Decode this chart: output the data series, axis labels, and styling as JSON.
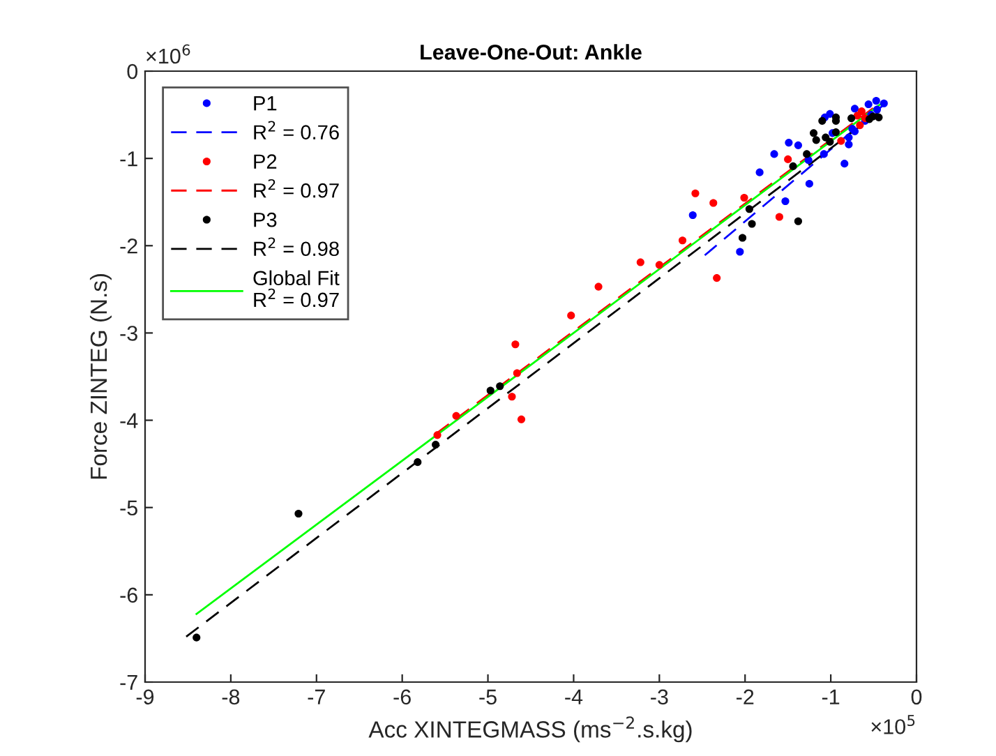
{
  "chart_data": {
    "type": "scatter",
    "title": "Leave-One-Out: Ankle",
    "xlabel": "Acc XINTEGMASS (ms$^{−2}$.s.kg)",
    "ylabel": "Force ZINTEG (N.s)",
    "annotations": [
      "×10$^{6}$",
      "×10$^{5}$"
    ],
    "xlim": [
      -9,
      0
    ],
    "xticks": [
      -9,
      -8,
      -7,
      -6,
      -5,
      -4,
      -3,
      -2,
      -1,
      0
    ],
    "ylim": [
      -7,
      0
    ],
    "yticks": [
      -7,
      -6,
      -5,
      -4,
      -3,
      -2,
      -1,
      0
    ],
    "grid": false,
    "legend": "top left",
    "series": [
      {
        "name": "P1",
        "marker": "circle",
        "color": "#0000ff",
        "x": [
          -0.47,
          -0.56,
          -0.72,
          -0.46,
          -0.53,
          -1.07,
          -1.01,
          -0.75,
          -0.72,
          -0.79,
          -0.79,
          -0.98,
          -1.49,
          -1.38,
          -1.66,
          -1.26,
          -1.08,
          -0.84,
          -1.83,
          -1.25,
          -1.53,
          -2.61,
          -2.06,
          -0.38,
          -0.6
        ],
        "values": [
          -0.34,
          -0.38,
          -0.43,
          -0.44,
          -0.5,
          -0.53,
          -0.49,
          -0.66,
          -0.69,
          -0.76,
          -0.84,
          -0.71,
          -0.82,
          -0.85,
          -0.95,
          -1.02,
          -0.95,
          -1.06,
          -1.16,
          -1.29,
          -1.49,
          -1.65,
          -2.07,
          -0.37,
          -0.57
        ]
      },
      {
        "name": "R$^{2}$ = 0.76",
        "type": "line",
        "line_style": "dashed",
        "color": "#0000ff",
        "x": [
          -2.47,
          -0.4
        ],
        "values": [
          -2.11,
          -0.4
        ]
      },
      {
        "name": "P2",
        "marker": "circle",
        "color": "#ff0000",
        "x": [
          -2.58,
          -2.37,
          -2.01,
          -2.73,
          -2.33,
          -1.6,
          -1.5,
          -0.88,
          -0.69,
          -0.64,
          -0.6,
          -0.66,
          -3.22,
          -3.0,
          -3.71,
          -4.03,
          -4.68,
          -4.66,
          -4.72,
          -4.61,
          -5.59,
          -5.37
        ],
        "values": [
          -1.4,
          -1.51,
          -1.45,
          -1.94,
          -2.37,
          -1.67,
          -1.01,
          -0.8,
          -0.51,
          -0.46,
          -0.54,
          -0.62,
          -2.19,
          -2.22,
          -2.47,
          -2.8,
          -3.13,
          -3.46,
          -3.73,
          -3.99,
          -4.17,
          -3.95
        ]
      },
      {
        "name": "R$^{2}$ = 0.97",
        "type": "line",
        "line_style": "dashed",
        "color": "#ff0000",
        "x": [
          -5.6,
          -0.5
        ],
        "values": [
          -4.15,
          -0.42
        ]
      },
      {
        "name": "P3",
        "marker": "circle",
        "color": "#000000",
        "x": [
          -0.94,
          -0.94,
          -1.1,
          -0.76,
          -0.51,
          -0.44,
          -1.2,
          -1.17,
          -1.06,
          -1.01,
          -0.94,
          -1.28,
          -1.44,
          -1.95,
          -1.92,
          -2.03,
          -1.38,
          -0.55,
          -4.97,
          -4.86,
          -8.4,
          -7.21,
          -5.82,
          -5.61
        ],
        "values": [
          -0.53,
          -0.57,
          -0.57,
          -0.54,
          -0.52,
          -0.53,
          -0.71,
          -0.79,
          -0.76,
          -0.81,
          -0.7,
          -0.95,
          -1.09,
          -1.58,
          -1.75,
          -1.91,
          -1.72,
          -0.55,
          -3.66,
          -3.61,
          -6.49,
          -5.07,
          -4.48,
          -4.28
        ]
      },
      {
        "name": "R$^{2}$ = 0.98",
        "type": "line",
        "line_style": "dashed",
        "color": "#000000",
        "x": [
          -8.52,
          -0.43
        ],
        "values": [
          -6.48,
          -0.46
        ]
      },
      {
        "name": "Global Fit\nR$^{2}$ = 0.97",
        "type": "line",
        "line_style": "solid",
        "color": "#00ff00",
        "x": [
          -8.4,
          -0.38
        ],
        "values": [
          -6.22,
          -0.35
        ]
      }
    ]
  }
}
